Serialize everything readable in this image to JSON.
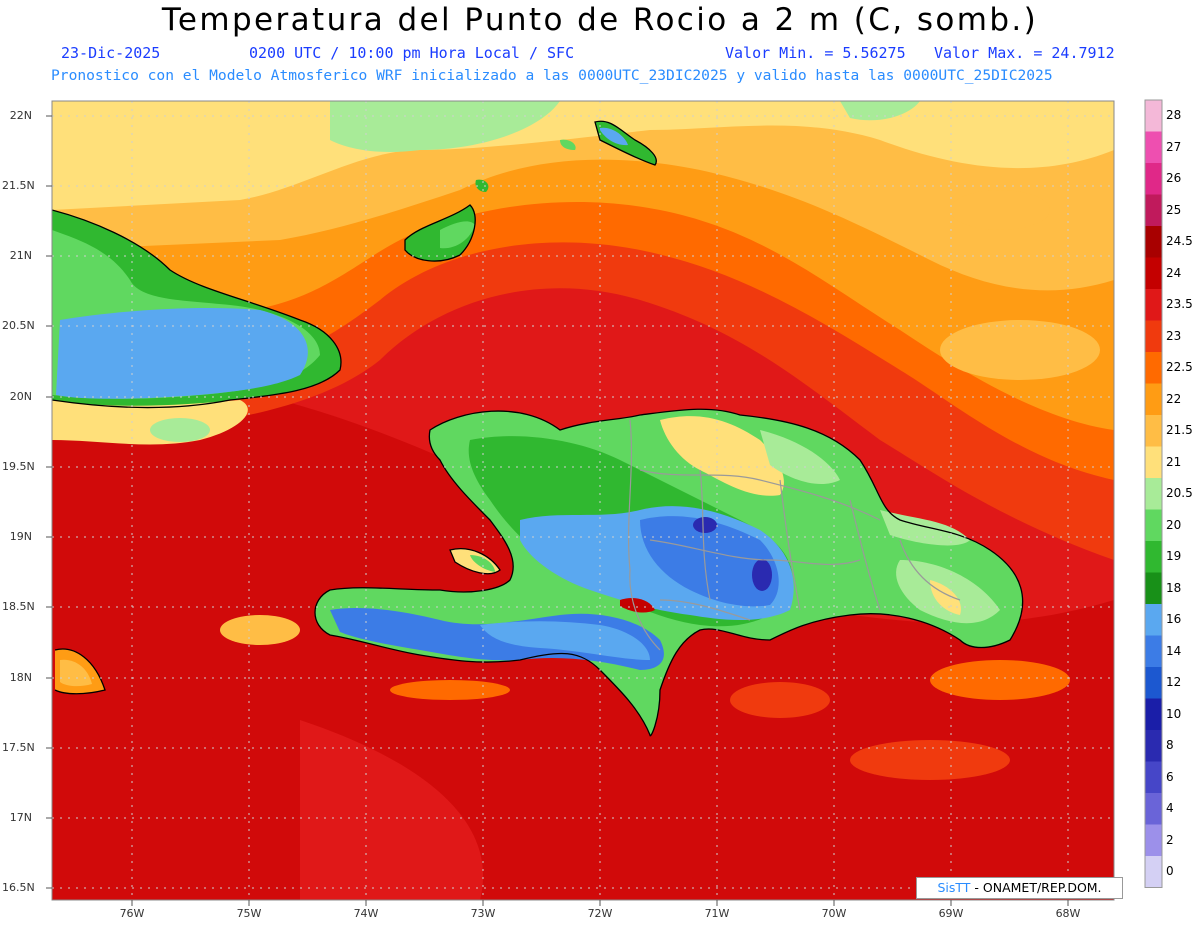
{
  "header": {
    "title": "Temperatura del Punto de Rocio a 2 m (C, somb.)",
    "date": "23-Dic-2025",
    "time": "0200 UTC / 10:00 pm Hora Local / SFC",
    "min": "Valor Min. = 5.56275",
    "max": "Valor Max. = 24.7912",
    "model": "Pronostico con el Modelo Atmosferico WRF inicializado a las 0000UTC_23DIC2025 y valido hasta las  0000UTC_25DIC2025"
  },
  "lat_labels": [
    "22N",
    "21.5N",
    "21N",
    "20.5N",
    "20N",
    "19.5N",
    "19N",
    "18.5N",
    "18N",
    "17.5N",
    "17N",
    "16.5N"
  ],
  "lon_labels": [
    "76W",
    "75W",
    "74W",
    "73W",
    "72W",
    "71W",
    "70W",
    "69W",
    "68W"
  ],
  "colorbar": {
    "labels": [
      "28",
      "27",
      "26",
      "25",
      "24.5",
      "24",
      "23.5",
      "23",
      "22.5",
      "22",
      "21.5",
      "21",
      "20.5",
      "20",
      "19",
      "18",
      "16",
      "14",
      "12",
      "10",
      "8",
      "6",
      "4",
      "2",
      "0"
    ],
    "colors": [
      "#f4b8d8",
      "#ee4fb0",
      "#e02888",
      "#c01a5c",
      "#a80000",
      "#c40000",
      "#e01818",
      "#f03a0e",
      "#ff6a00",
      "#ff9c14",
      "#ffbd45",
      "#ffe07a",
      "#a8eb98",
      "#60d860",
      "#30b830",
      "#189018",
      "#5aa8f0",
      "#3c7ce6",
      "#1c58d0",
      "#1a1ea8",
      "#2a2ab0",
      "#4646c8",
      "#6a64d8",
      "#9c90ea",
      "#d4d0f4"
    ]
  },
  "credit": {
    "brand": "SisTT",
    "org": " - ONAMET/REP.DOM."
  },
  "map_colors": {
    "sea_deep": "#e01818",
    "sea_dark": "#c40000",
    "sea_mid": "#f03a0e",
    "sea_orange": "#ff6a00",
    "sea_light": "#ff9c14",
    "sea_lighter": "#ffbd45",
    "yellow": "#ffe07a",
    "light_green": "#a8eb98",
    "green": "#60d860",
    "dark_green": "#30b830",
    "blue": "#5aa8f0",
    "mid_blue": "#3c7ce6",
    "purple": "#2a2ab0"
  }
}
